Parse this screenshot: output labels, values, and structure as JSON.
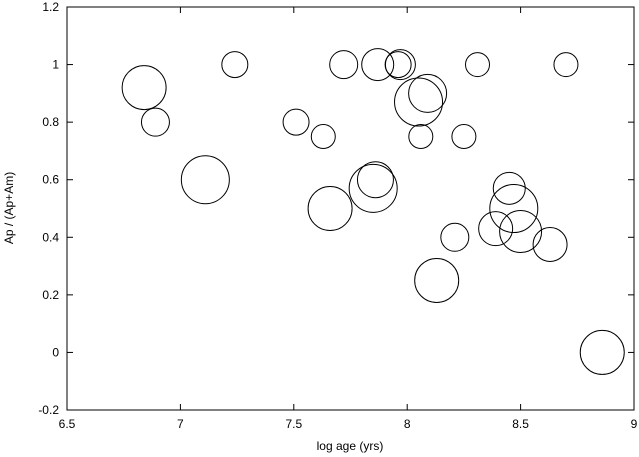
{
  "chart_data": {
    "type": "scatter",
    "title": "",
    "xlabel": "log age (yrs)",
    "ylabel": "Ap / (Ap+Am)",
    "xlim": [
      6.5,
      9
    ],
    "ylim": [
      -0.2,
      1.2
    ],
    "xticks": [
      "6.5",
      "7",
      "7.5",
      "8",
      "8.5",
      "9"
    ],
    "yticks": [
      "-0.2",
      "0",
      "0.2",
      "0.4",
      "0.6",
      "0.8",
      "1",
      "1.2"
    ],
    "grid": false,
    "legend": "none",
    "points": [
      {
        "x": 6.84,
        "y": 0.92,
        "size": 22
      },
      {
        "x": 6.89,
        "y": 0.8,
        "size": 14
      },
      {
        "x": 7.11,
        "y": 0.6,
        "size": 24
      },
      {
        "x": 7.24,
        "y": 1.0,
        "size": 13
      },
      {
        "x": 7.51,
        "y": 0.8,
        "size": 13
      },
      {
        "x": 7.63,
        "y": 0.75,
        "size": 12
      },
      {
        "x": 7.66,
        "y": 0.5,
        "size": 22
      },
      {
        "x": 7.72,
        "y": 1.0,
        "size": 14
      },
      {
        "x": 7.85,
        "y": 0.57,
        "size": 24
      },
      {
        "x": 7.86,
        "y": 0.6,
        "size": 18
      },
      {
        "x": 7.87,
        "y": 1.0,
        "size": 16
      },
      {
        "x": 7.96,
        "y": 1.0,
        "size": 13
      },
      {
        "x": 7.97,
        "y": 1.0,
        "size": 15
      },
      {
        "x": 8.05,
        "y": 0.87,
        "size": 24
      },
      {
        "x": 8.06,
        "y": 0.75,
        "size": 12
      },
      {
        "x": 8.09,
        "y": 0.9,
        "size": 19
      },
      {
        "x": 8.13,
        "y": 0.25,
        "size": 22
      },
      {
        "x": 8.21,
        "y": 0.4,
        "size": 14
      },
      {
        "x": 8.25,
        "y": 0.75,
        "size": 12
      },
      {
        "x": 8.31,
        "y": 1.0,
        "size": 12
      },
      {
        "x": 8.39,
        "y": 0.43,
        "size": 17
      },
      {
        "x": 8.45,
        "y": 0.57,
        "size": 16
      },
      {
        "x": 8.47,
        "y": 0.5,
        "size": 24
      },
      {
        "x": 8.5,
        "y": 0.42,
        "size": 21
      },
      {
        "x": 8.63,
        "y": 0.375,
        "size": 17
      },
      {
        "x": 8.7,
        "y": 1.0,
        "size": 12
      },
      {
        "x": 8.86,
        "y": 0.0,
        "size": 22
      }
    ]
  }
}
